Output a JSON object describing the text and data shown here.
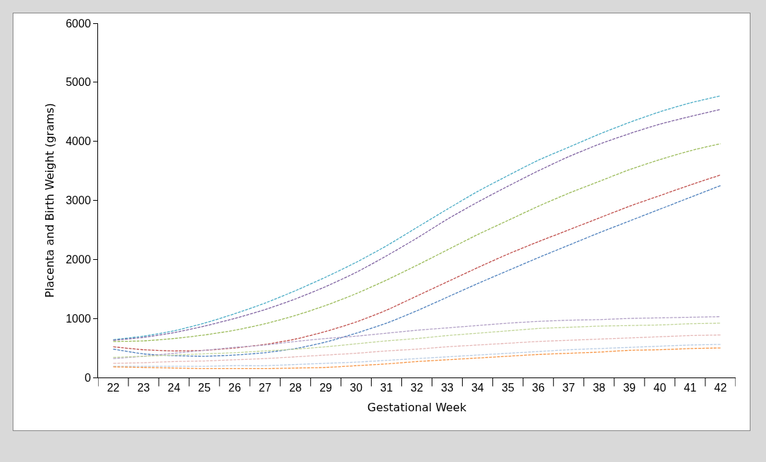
{
  "chart_data": {
    "type": "line",
    "xlabel": "Gestational Week",
    "ylabel": "Placenta and Birth Weight (grams)",
    "categories": [
      "22",
      "23",
      "24",
      "25",
      "26",
      "27",
      "28",
      "29",
      "30",
      "31",
      "32",
      "33",
      "34",
      "35",
      "36",
      "37",
      "38",
      "39",
      "40",
      "41",
      "42"
    ],
    "ylim": [
      0,
      6000
    ],
    "yticks": [
      0,
      1000,
      2000,
      3000,
      4000,
      5000,
      6000
    ],
    "grid": false,
    "line_style": "dashed",
    "series": [
      {
        "color": "#4bacc6",
        "values": [
          640,
          700,
          790,
          920,
          1080,
          1260,
          1470,
          1700,
          1950,
          2230,
          2540,
          2850,
          3150,
          3420,
          3680,
          3900,
          4120,
          4320,
          4500,
          4650,
          4770
        ]
      },
      {
        "color": "#8064a2",
        "values": [
          630,
          680,
          760,
          870,
          1000,
          1150,
          1330,
          1540,
          1780,
          2060,
          2360,
          2680,
          2970,
          3240,
          3500,
          3740,
          3950,
          4130,
          4290,
          4420,
          4540
        ]
      },
      {
        "color": "#9bbb59",
        "values": [
          610,
          620,
          660,
          720,
          800,
          910,
          1050,
          1220,
          1420,
          1650,
          1900,
          2160,
          2420,
          2660,
          2900,
          3120,
          3320,
          3520,
          3690,
          3840,
          3960
        ]
      },
      {
        "color": "#c0504d",
        "values": [
          520,
          470,
          450,
          460,
          500,
          560,
          650,
          780,
          940,
          1140,
          1380,
          1620,
          1860,
          2090,
          2300,
          2500,
          2700,
          2900,
          3080,
          3260,
          3430
        ]
      },
      {
        "color": "#4f81bd",
        "values": [
          480,
          400,
          370,
          360,
          380,
          420,
          490,
          600,
          750,
          920,
          1130,
          1360,
          1590,
          1810,
          2030,
          2240,
          2450,
          2650,
          2850,
          3050,
          3250
        ]
      },
      {
        "color": "#b3a2c7",
        "values": [
          320,
          360,
          410,
          460,
          510,
          550,
          610,
          660,
          700,
          750,
          800,
          840,
          880,
          920,
          950,
          970,
          980,
          1000,
          1010,
          1020,
          1030
        ]
      },
      {
        "color": "#c3d69b",
        "values": [
          340,
          360,
          380,
          400,
          420,
          450,
          480,
          520,
          570,
          620,
          660,
          710,
          750,
          790,
          830,
          850,
          870,
          880,
          890,
          910,
          920
        ]
      },
      {
        "color": "#e6b9b8",
        "values": [
          240,
          250,
          270,
          280,
          300,
          320,
          350,
          380,
          410,
          450,
          480,
          520,
          550,
          580,
          610,
          630,
          650,
          670,
          690,
          710,
          720
        ]
      },
      {
        "color": "#b9cde5",
        "values": [
          190,
          190,
          190,
          190,
          200,
          200,
          220,
          240,
          260,
          290,
          320,
          350,
          380,
          410,
          440,
          470,
          490,
          510,
          530,
          550,
          560
        ]
      },
      {
        "color": "#f79646",
        "values": [
          180,
          170,
          160,
          150,
          150,
          150,
          160,
          170,
          200,
          230,
          270,
          300,
          330,
          360,
          390,
          410,
          430,
          460,
          470,
          490,
          500
        ]
      }
    ]
  }
}
